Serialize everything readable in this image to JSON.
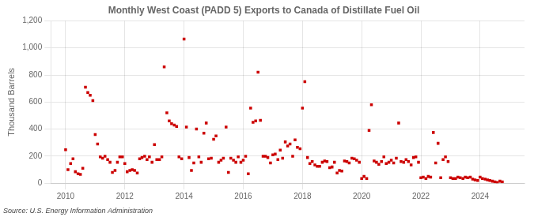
{
  "chart_data": {
    "type": "scatter",
    "title": "Monthly West Coast (PADD 5) Exports to Canada of Distillate Fuel Oil",
    "ylabel": "Thousand Barrels",
    "annotations": [
      "Source: U.S. Energy Information Administration"
    ],
    "color": "#cc0000",
    "marker": "square",
    "grid": true,
    "xlim": [
      2009.5,
      2025.5
    ],
    "xticks": [
      2010,
      2012,
      2014,
      2016,
      2018,
      2020,
      2022,
      2024
    ],
    "ylim": [
      0,
      1200
    ],
    "yticks": [
      0,
      200,
      400,
      600,
      800,
      {
        "value": 1000,
        "label": "1,000"
      },
      {
        "value": 1200,
        "label": "1,200"
      }
    ],
    "x": [
      2010.0,
      2010.08,
      2010.17,
      2010.25,
      2010.33,
      2010.42,
      2010.5,
      2010.58,
      2010.67,
      2010.75,
      2010.83,
      2010.92,
      2011.0,
      2011.08,
      2011.17,
      2011.25,
      2011.33,
      2011.42,
      2011.5,
      2011.58,
      2011.67,
      2011.75,
      2011.83,
      2011.92,
      2012.0,
      2012.08,
      2012.17,
      2012.25,
      2012.33,
      2012.42,
      2012.5,
      2012.58,
      2012.67,
      2012.75,
      2012.83,
      2012.92,
      2013.0,
      2013.08,
      2013.17,
      2013.25,
      2013.33,
      2013.42,
      2013.5,
      2013.58,
      2013.67,
      2013.75,
      2013.83,
      2013.92,
      2014.0,
      2014.08,
      2014.17,
      2014.25,
      2014.33,
      2014.42,
      2014.5,
      2014.58,
      2014.67,
      2014.75,
      2014.83,
      2014.92,
      2015.0,
      2015.08,
      2015.17,
      2015.25,
      2015.33,
      2015.42,
      2015.5,
      2015.58,
      2015.67,
      2015.75,
      2015.83,
      2015.92,
      2016.0,
      2016.08,
      2016.17,
      2016.25,
      2016.33,
      2016.42,
      2016.5,
      2016.58,
      2016.67,
      2016.75,
      2016.83,
      2016.92,
      2017.0,
      2017.08,
      2017.17,
      2017.25,
      2017.33,
      2017.42,
      2017.5,
      2017.58,
      2017.67,
      2017.75,
      2017.83,
      2017.92,
      2018.0,
      2018.08,
      2018.17,
      2018.25,
      2018.33,
      2018.42,
      2018.5,
      2018.58,
      2018.67,
      2018.75,
      2018.83,
      2018.92,
      2019.0,
      2019.08,
      2019.17,
      2019.25,
      2019.33,
      2019.42,
      2019.5,
      2019.58,
      2019.67,
      2019.75,
      2019.83,
      2019.92,
      2020.0,
      2020.08,
      2020.17,
      2020.25,
      2020.33,
      2020.42,
      2020.5,
      2020.58,
      2020.67,
      2020.75,
      2020.83,
      2020.92,
      2021.0,
      2021.08,
      2021.17,
      2021.25,
      2021.33,
      2021.42,
      2021.5,
      2021.58,
      2021.67,
      2021.75,
      2021.83,
      2021.92,
      2022.0,
      2022.08,
      2022.17,
      2022.25,
      2022.33,
      2022.42,
      2022.5,
      2022.58,
      2022.67,
      2022.75,
      2022.83,
      2022.92,
      2023.0,
      2023.08,
      2023.17,
      2023.25,
      2023.33,
      2023.42,
      2023.5,
      2023.58,
      2023.67,
      2023.75,
      2023.83,
      2023.92,
      2024.0,
      2024.08,
      2024.17,
      2024.25,
      2024.33,
      2024.42,
      2024.5,
      2024.58,
      2024.67,
      2024.75
    ],
    "values": [
      247,
      100,
      145,
      180,
      85,
      70,
      65,
      110,
      710,
      670,
      650,
      610,
      360,
      290,
      195,
      185,
      200,
      175,
      155,
      80,
      95,
      155,
      195,
      195,
      145,
      85,
      95,
      100,
      95,
      75,
      180,
      190,
      200,
      175,
      195,
      155,
      285,
      175,
      175,
      195,
      860,
      520,
      460,
      440,
      430,
      420,
      195,
      180,
      1065,
      415,
      190,
      95,
      150,
      400,
      195,
      155,
      370,
      445,
      180,
      185,
      325,
      350,
      155,
      170,
      185,
      415,
      80,
      185,
      170,
      155,
      195,
      155,
      170,
      200,
      70,
      555,
      450,
      460,
      820,
      465,
      200,
      200,
      190,
      150,
      210,
      215,
      175,
      245,
      185,
      305,
      275,
      290,
      200,
      320,
      265,
      255,
      555,
      750,
      190,
      145,
      160,
      135,
      125,
      125,
      155,
      165,
      160,
      115,
      120,
      155,
      75,
      95,
      90,
      165,
      160,
      150,
      185,
      180,
      170,
      155,
      35,
      50,
      35,
      390,
      580,
      165,
      155,
      140,
      160,
      195,
      145,
      155,
      170,
      150,
      185,
      445,
      160,
      155,
      175,
      160,
      135,
      190,
      195,
      155,
      40,
      45,
      35,
      50,
      45,
      375,
      150,
      295,
      40,
      175,
      195,
      160,
      40,
      35,
      35,
      45,
      40,
      35,
      45,
      40,
      45,
      30,
      25,
      20,
      45,
      35,
      30,
      25,
      20,
      15,
      10,
      5,
      15,
      10
    ]
  }
}
